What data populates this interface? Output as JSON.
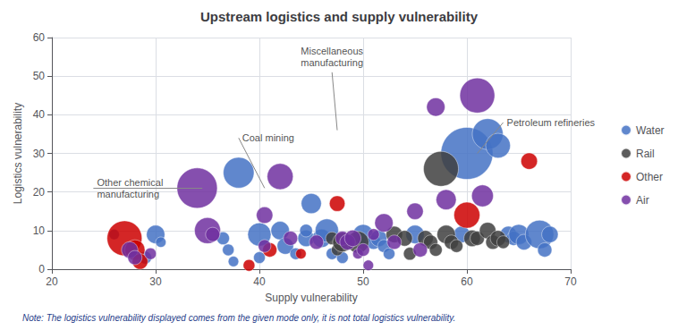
{
  "chart_data": {
    "type": "bubble",
    "title": "Upstream logistics and supply vulnerability",
    "xlabel": "Supply vulnerability",
    "ylabel": "Logistics vulnerability",
    "xlim": [
      20,
      70
    ],
    "ylim": [
      0,
      60
    ],
    "xticks": [
      20,
      30,
      40,
      50,
      60,
      70
    ],
    "yticks": [
      0,
      10,
      20,
      30,
      40,
      50,
      60
    ],
    "grid": true,
    "legend": "right",
    "note": "Note: The logistics vulnerability displayed comes from the given mode only, it is not total logistics vulnerability.",
    "series": [
      {
        "name": "Water",
        "color": "#4472c4",
        "x": [
          29,
          26,
          30,
          30.5,
          36.5,
          37,
          37.5,
          38,
          40,
          40,
          42,
          42.5,
          43.5,
          44.5,
          44.5,
          45,
          46,
          46.5,
          47,
          48,
          50,
          51,
          51.5,
          52,
          52.5,
          55,
          59.5,
          60,
          62,
          63,
          64,
          64.5,
          65,
          65.5,
          67,
          67.5,
          68
        ],
        "values": [
          3,
          9,
          9,
          7,
          8,
          5,
          2,
          25,
          9,
          3,
          10,
          6,
          4,
          8,
          10,
          17,
          8,
          10,
          4,
          3,
          9,
          7,
          8,
          6,
          4,
          9,
          9,
          30,
          35,
          32,
          9,
          8,
          9,
          7,
          9,
          5,
          9
        ],
        "sizes": [
          120,
          80,
          250,
          80,
          120,
          100,
          80,
          700,
          400,
          100,
          250,
          200,
          100,
          200,
          120,
          300,
          250,
          400,
          100,
          100,
          300,
          150,
          200,
          120,
          100,
          250,
          200,
          2000,
          700,
          450,
          200,
          150,
          300,
          180,
          600,
          150,
          200
        ]
      },
      {
        "name": "Rail",
        "color": "#404040",
        "x": [
          47,
          47.5,
          48,
          49.5,
          53,
          54,
          54.5,
          56,
          56.5,
          57,
          57.5,
          58,
          58.5,
          59,
          60.5,
          61,
          62,
          62.5,
          63,
          63.5
        ],
        "values": [
          8,
          5,
          7,
          7,
          9,
          8,
          4,
          8,
          7,
          5,
          26,
          9,
          7,
          6,
          8,
          8,
          10,
          7,
          8,
          7
        ],
        "sizes": [
          120,
          100,
          280,
          350,
          200,
          180,
          120,
          180,
          150,
          120,
          900,
          250,
          150,
          120,
          200,
          150,
          200,
          150,
          180,
          120
        ]
      },
      {
        "name": "Other",
        "color": "#cc0000",
        "x": [
          27,
          28,
          28.5,
          39,
          41,
          44,
          47.5,
          60,
          66
        ],
        "values": [
          8,
          5,
          2,
          1,
          5,
          4,
          17,
          14,
          28
        ],
        "sizes": [
          900,
          300,
          180,
          100,
          150,
          80,
          180,
          500,
          200
        ]
      },
      {
        "name": "Air",
        "color": "#7030a0",
        "x": [
          27.5,
          28,
          29.5,
          34,
          35,
          35.5,
          40.5,
          40.5,
          42,
          43,
          45.5,
          48,
          48.5,
          49,
          49.5,
          50,
          50.5,
          51,
          52,
          53,
          55.5,
          55,
          57,
          58,
          61.5,
          61
        ],
        "values": [
          5,
          3,
          4,
          21,
          10,
          9,
          14,
          6,
          24,
          8,
          7,
          8,
          7,
          8,
          4,
          5,
          1,
          9,
          12,
          7,
          5,
          15,
          42,
          18,
          19,
          45
        ],
        "sizes": [
          200,
          150,
          100,
          1200,
          500,
          150,
          200,
          120,
          500,
          150,
          150,
          150,
          180,
          200,
          80,
          120,
          80,
          100,
          250,
          150,
          150,
          200,
          250,
          300,
          350,
          900
        ]
      }
    ],
    "annotations": [
      {
        "text": "Miscellaneous\nmanufacturing",
        "xy": [
          47.5,
          36
        ],
        "xytext": [
          47,
          51
        ]
      },
      {
        "text": "Coal mining",
        "xy": [
          40.5,
          21
        ],
        "xytext": [
          38,
          34
        ]
      },
      {
        "text": "Other chemical\nmanufacturing",
        "xy": [
          34.5,
          21
        ],
        "xytext": [
          24,
          21
        ]
      },
      {
        "text": "Petroleum refineries",
        "xy": [
          61,
          30
        ],
        "xytext": [
          63.5,
          38
        ]
      }
    ]
  }
}
